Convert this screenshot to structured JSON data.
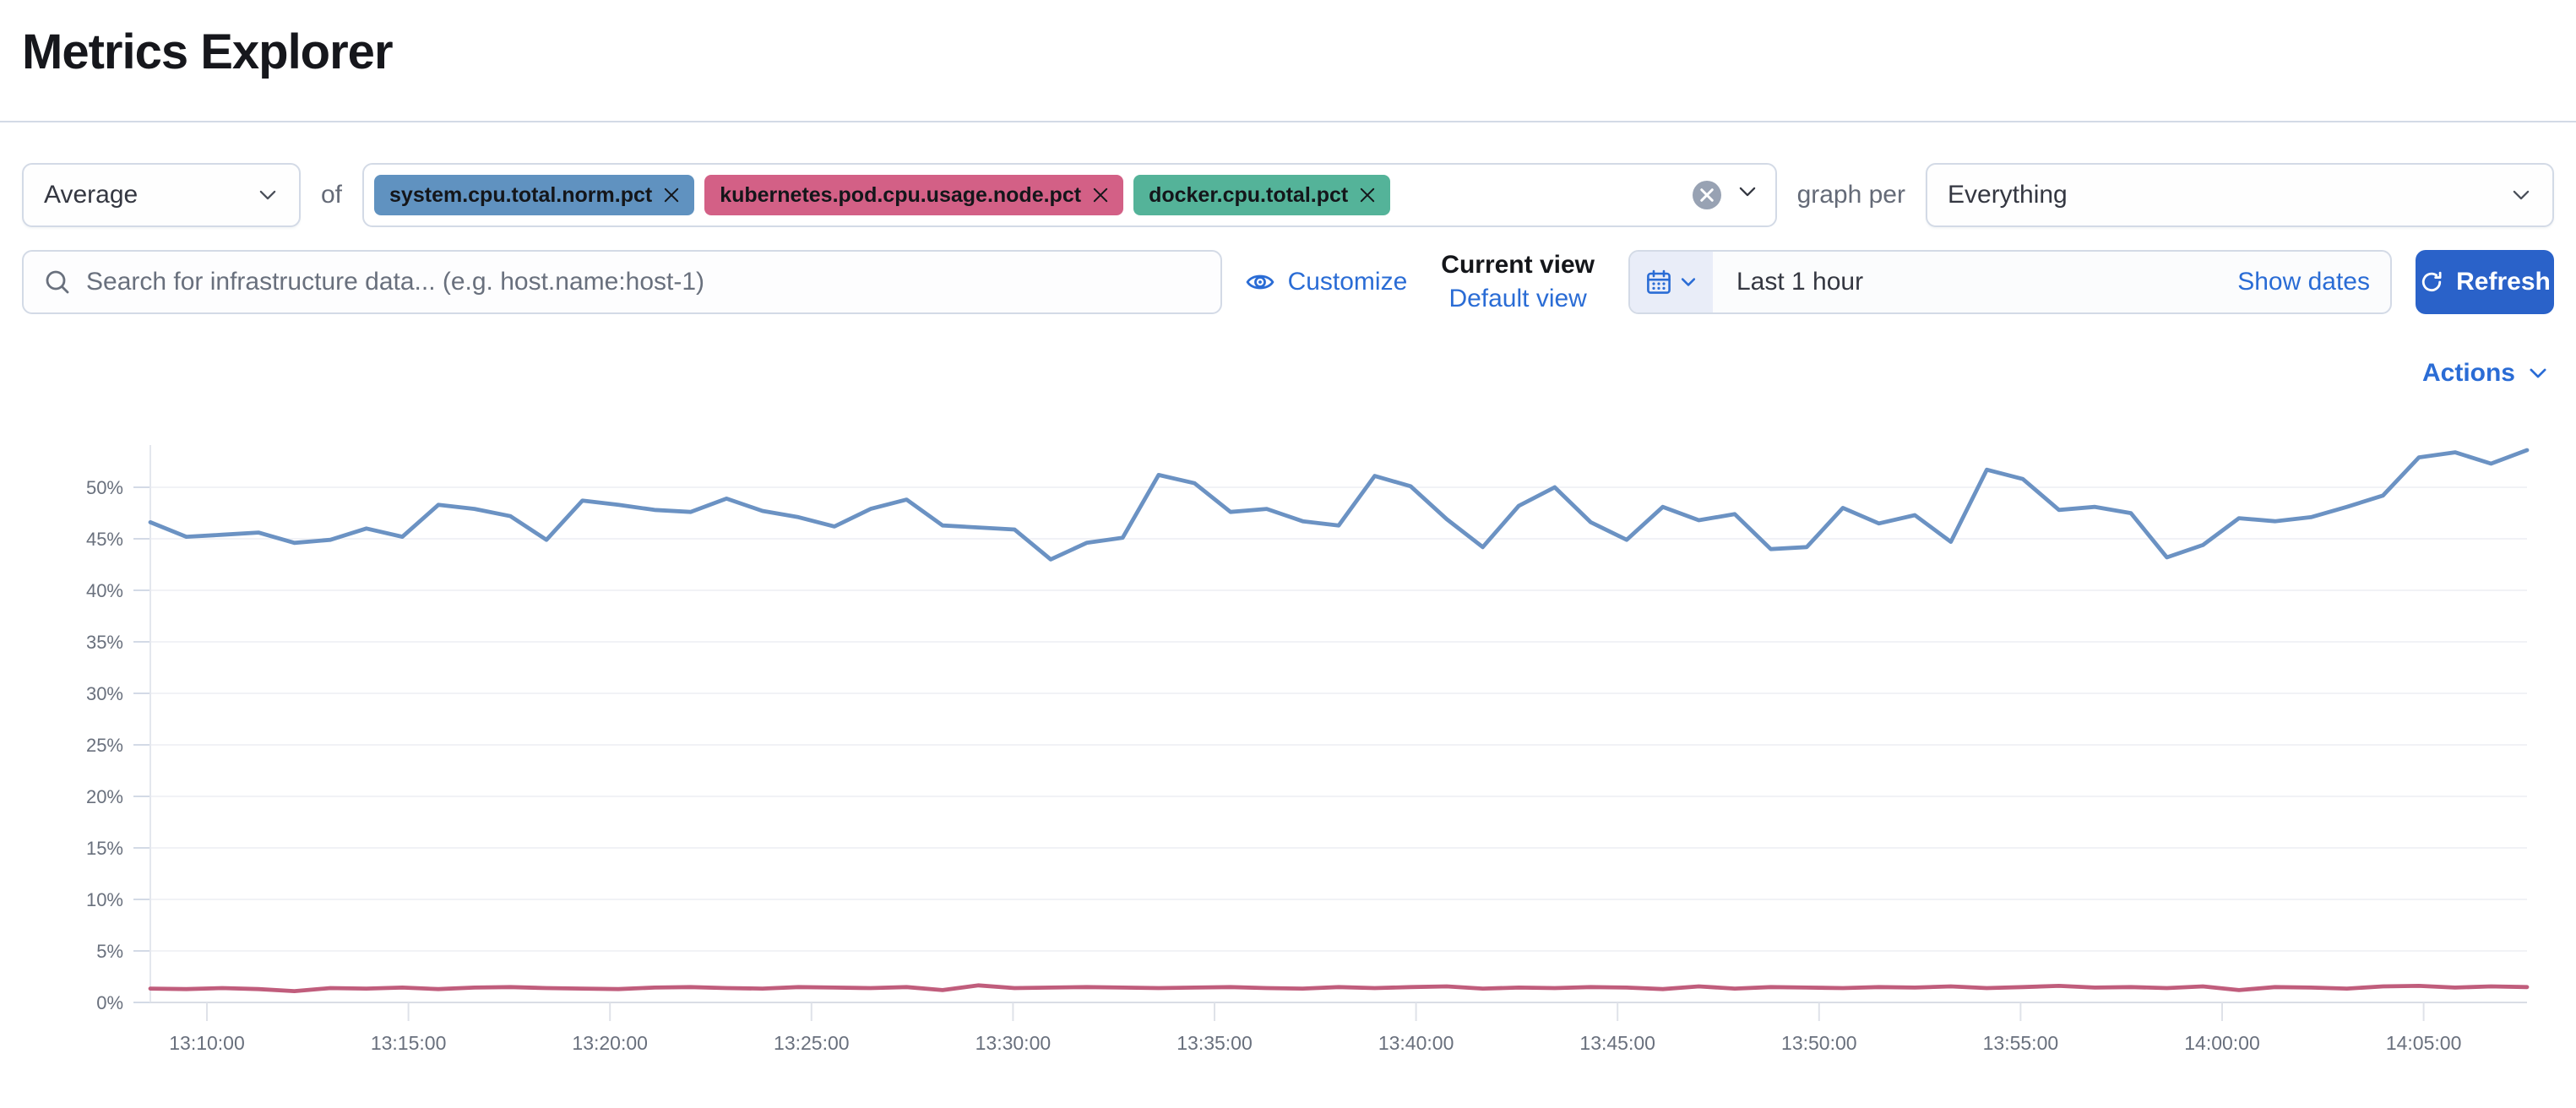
{
  "page": {
    "title": "Metrics Explorer"
  },
  "colors": {
    "accent": "#2a6cd5",
    "button_fill": "#2a62c9",
    "border": "#d3dae6",
    "text_primary": "#343741",
    "text_muted": "#69707d"
  },
  "aggregation_row": {
    "aggregation_select": {
      "value": "Average"
    },
    "of_label": "of",
    "metric_tags": [
      {
        "label": "system.cpu.total.norm.pct",
        "color": "#6092C0"
      },
      {
        "label": "kubernetes.pod.cpu.usage.node.pct",
        "color": "#D36086"
      },
      {
        "label": "docker.cpu.total.pct",
        "color": "#54B399"
      }
    ],
    "graph_per_label": "graph per",
    "graph_per_select": {
      "value": "Everything"
    }
  },
  "toolbar": {
    "search": {
      "placeholder": "Search for infrastructure data... (e.g. host.name:host-1)",
      "value": ""
    },
    "customize_label": "Customize",
    "current_view_label": "Current view",
    "default_view_label": "Default view",
    "date_picker": {
      "value": "Last 1 hour",
      "show_dates_label": "Show dates"
    },
    "refresh_label": "Refresh"
  },
  "chart_section": {
    "actions_label": "Actions"
  },
  "chart_data": {
    "type": "line",
    "title": "",
    "xlabel": "",
    "ylabel": "",
    "unit": "%",
    "grid": true,
    "legend_position": "none",
    "ylim": [
      0,
      54
    ],
    "y_ticks": [
      0,
      5,
      10,
      15,
      20,
      25,
      30,
      35,
      40,
      45,
      50
    ],
    "x_tick_labels": [
      "13:10:00",
      "13:15:00",
      "13:20:00",
      "13:25:00",
      "13:30:00",
      "13:35:00",
      "13:40:00",
      "13:45:00",
      "13:50:00",
      "13:55:00",
      "14:00:00",
      "14:05:00"
    ],
    "x_range": [
      "13:07:00",
      "14:07:00"
    ],
    "series": [
      {
        "name": "avg of system.cpu.total.norm.pct",
        "color": "#6B92C3",
        "values": [
          46.6,
          45.2,
          45.4,
          45.6,
          44.6,
          44.9,
          46.0,
          45.2,
          48.3,
          47.9,
          47.2,
          44.9,
          48.7,
          48.3,
          47.8,
          47.6,
          48.9,
          47.7,
          47.1,
          46.2,
          47.9,
          48.8,
          46.3,
          46.1,
          45.9,
          43.0,
          44.6,
          45.1,
          51.2,
          50.4,
          47.6,
          47.9,
          46.7,
          46.3,
          51.1,
          50.1,
          46.9,
          44.2,
          48.2,
          50.0,
          46.6,
          44.9,
          48.1,
          46.8,
          47.4,
          44.0,
          44.2,
          48.0,
          46.5,
          47.3,
          44.7,
          51.7,
          50.8,
          47.8,
          48.1,
          47.5,
          43.2,
          44.4,
          47.0,
          46.7,
          47.1,
          48.1,
          49.2,
          52.9,
          53.4,
          52.3,
          53.6
        ]
      },
      {
        "name": "avg of kubernetes.pod.cpu.usage.node.pct",
        "color": "#C05D7C",
        "values": [
          1.35,
          1.3,
          1.4,
          1.3,
          1.1,
          1.4,
          1.35,
          1.45,
          1.3,
          1.45,
          1.5,
          1.4,
          1.35,
          1.3,
          1.45,
          1.5,
          1.4,
          1.35,
          1.5,
          1.45,
          1.4,
          1.5,
          1.2,
          1.65,
          1.4,
          1.45,
          1.5,
          1.45,
          1.4,
          1.45,
          1.5,
          1.4,
          1.35,
          1.5,
          1.4,
          1.5,
          1.55,
          1.35,
          1.45,
          1.4,
          1.5,
          1.45,
          1.3,
          1.55,
          1.35,
          1.5,
          1.45,
          1.4,
          1.5,
          1.45,
          1.55,
          1.4,
          1.5,
          1.6,
          1.45,
          1.5,
          1.4,
          1.55,
          1.2,
          1.5,
          1.45,
          1.35,
          1.55,
          1.6,
          1.45,
          1.55,
          1.5
        ]
      }
    ]
  }
}
